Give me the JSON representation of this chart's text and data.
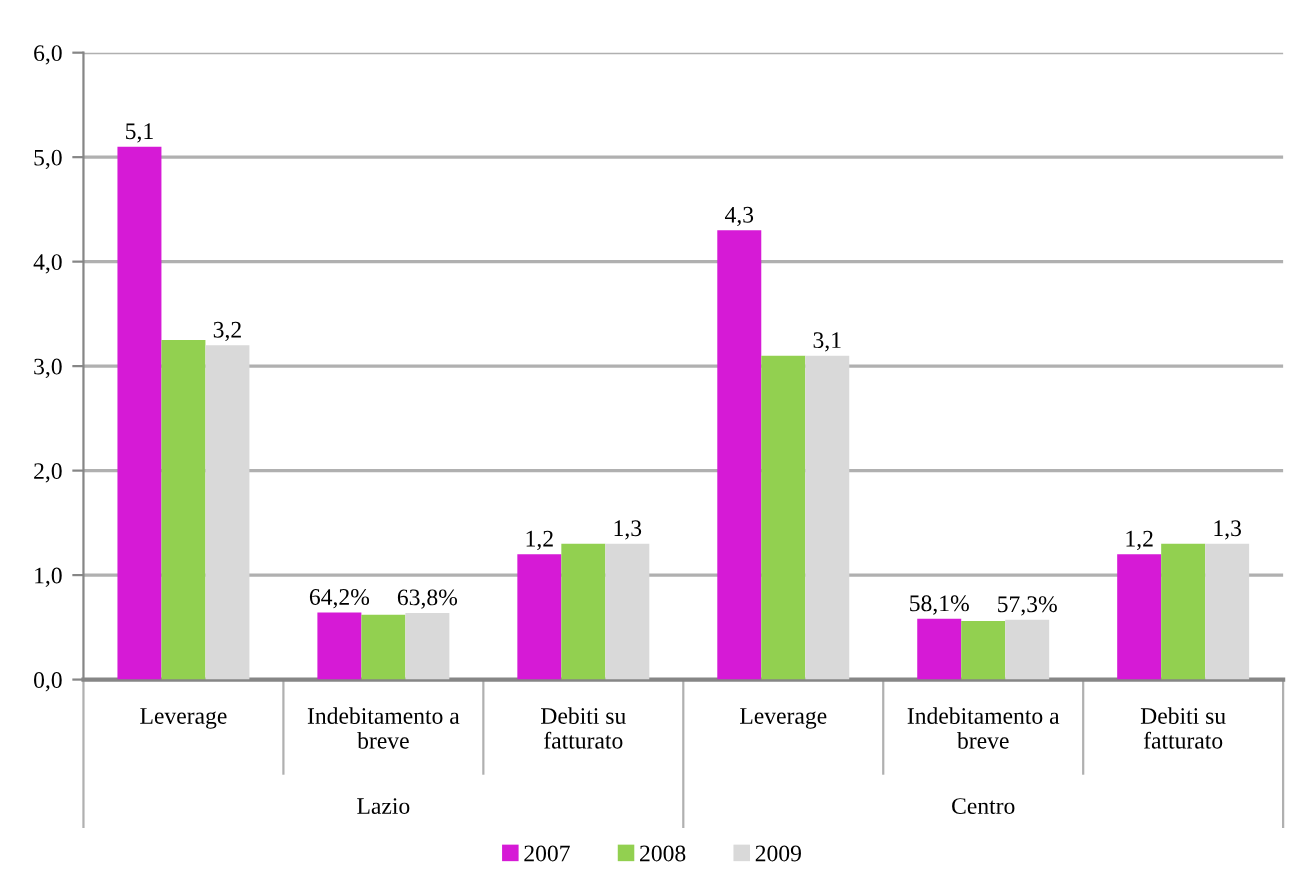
{
  "chart_data": {
    "type": "bar",
    "categories": [
      "Leverage",
      "Indebitamento a\nbreve",
      "Debiti su\nfatturato",
      "Leverage",
      "Indebitamento a\nbreve",
      "Debiti su\nfatturato"
    ],
    "annotations": [
      "Lazio",
      "Centro"
    ],
    "series": [
      {
        "name": "2007",
        "color": "#d61ad6",
        "values": [
          5.1,
          0.642,
          1.2,
          4.3,
          0.581,
          1.2
        ],
        "value_labels": [
          "5,1",
          "64,2%",
          "1,2",
          "4,3",
          "58,1%",
          "1,2"
        ]
      },
      {
        "name": "2008",
        "color": "#92d050",
        "values": [
          3.25,
          0.62,
          1.3,
          3.1,
          0.56,
          1.3
        ]
      },
      {
        "name": "2009",
        "color": "#d9d9d9",
        "values": [
          3.2,
          0.638,
          1.3,
          3.1,
          0.573,
          1.3
        ],
        "value_labels": [
          "3,2",
          "63,8%",
          "1,3",
          "3,1",
          "57,3%",
          "1,3"
        ]
      }
    ],
    "ylim": [
      0,
      6
    ],
    "yticks": [
      {
        "value": 0,
        "label": "0,0"
      },
      {
        "value": 1,
        "label": "1,0"
      },
      {
        "value": 2,
        "label": "2,0"
      },
      {
        "value": 3,
        "label": "3,0"
      },
      {
        "value": 4,
        "label": "4,0"
      },
      {
        "value": 5,
        "label": "5,0"
      },
      {
        "value": 6,
        "label": "6,0"
      }
    ],
    "grid": "y",
    "legend": "bottom"
  }
}
